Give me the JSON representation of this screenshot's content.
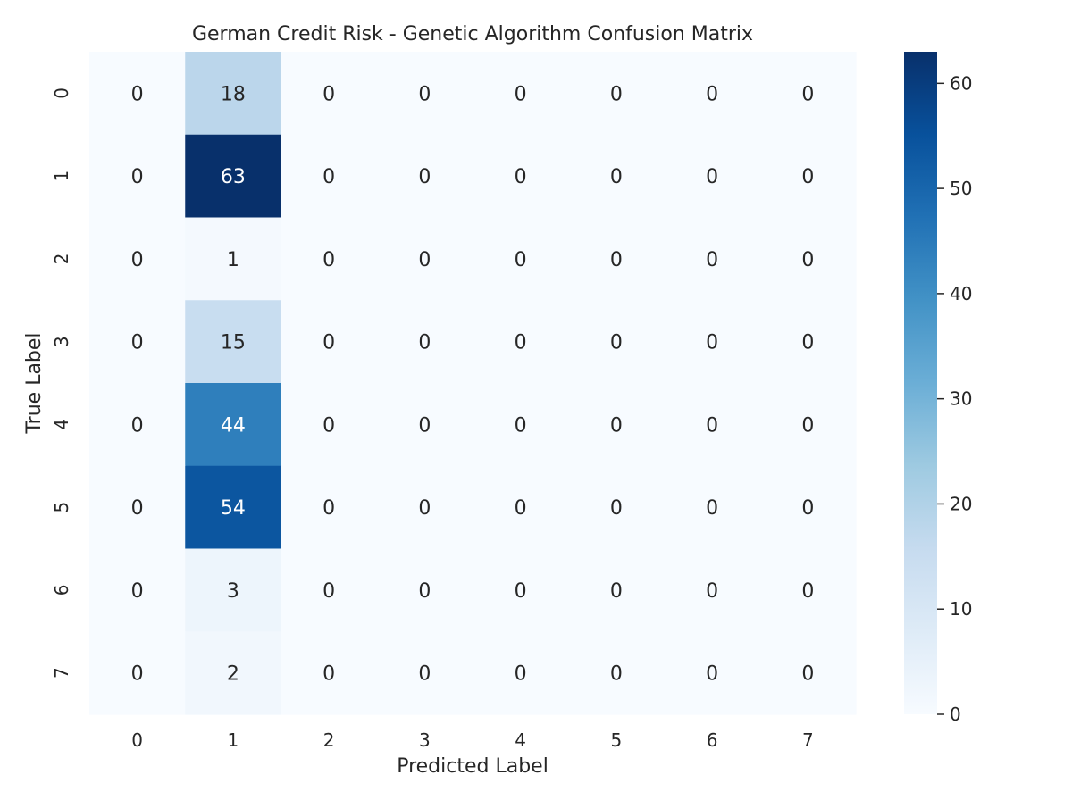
{
  "chart_data": {
    "type": "heatmap",
    "title": "German Credit Risk - Genetic Algorithm Confusion Matrix",
    "xlabel": "Predicted Label",
    "ylabel": "True Label",
    "x_categories": [
      "0",
      "1",
      "2",
      "3",
      "4",
      "5",
      "6",
      "7"
    ],
    "y_categories": [
      "0",
      "1",
      "2",
      "3",
      "4",
      "5",
      "6",
      "7"
    ],
    "values": [
      [
        0,
        18,
        0,
        0,
        0,
        0,
        0,
        0
      ],
      [
        0,
        63,
        0,
        0,
        0,
        0,
        0,
        0
      ],
      [
        0,
        1,
        0,
        0,
        0,
        0,
        0,
        0
      ],
      [
        0,
        15,
        0,
        0,
        0,
        0,
        0,
        0
      ],
      [
        0,
        44,
        0,
        0,
        0,
        0,
        0,
        0
      ],
      [
        0,
        54,
        0,
        0,
        0,
        0,
        0,
        0
      ],
      [
        0,
        3,
        0,
        0,
        0,
        0,
        0,
        0
      ],
      [
        0,
        2,
        0,
        0,
        0,
        0,
        0,
        0
      ]
    ],
    "colormap": "Blues",
    "colorbar": {
      "range": [
        0,
        63
      ],
      "ticks": [
        0,
        10,
        20,
        30,
        40,
        50,
        60
      ]
    },
    "annotations": true,
    "grid": false
  }
}
